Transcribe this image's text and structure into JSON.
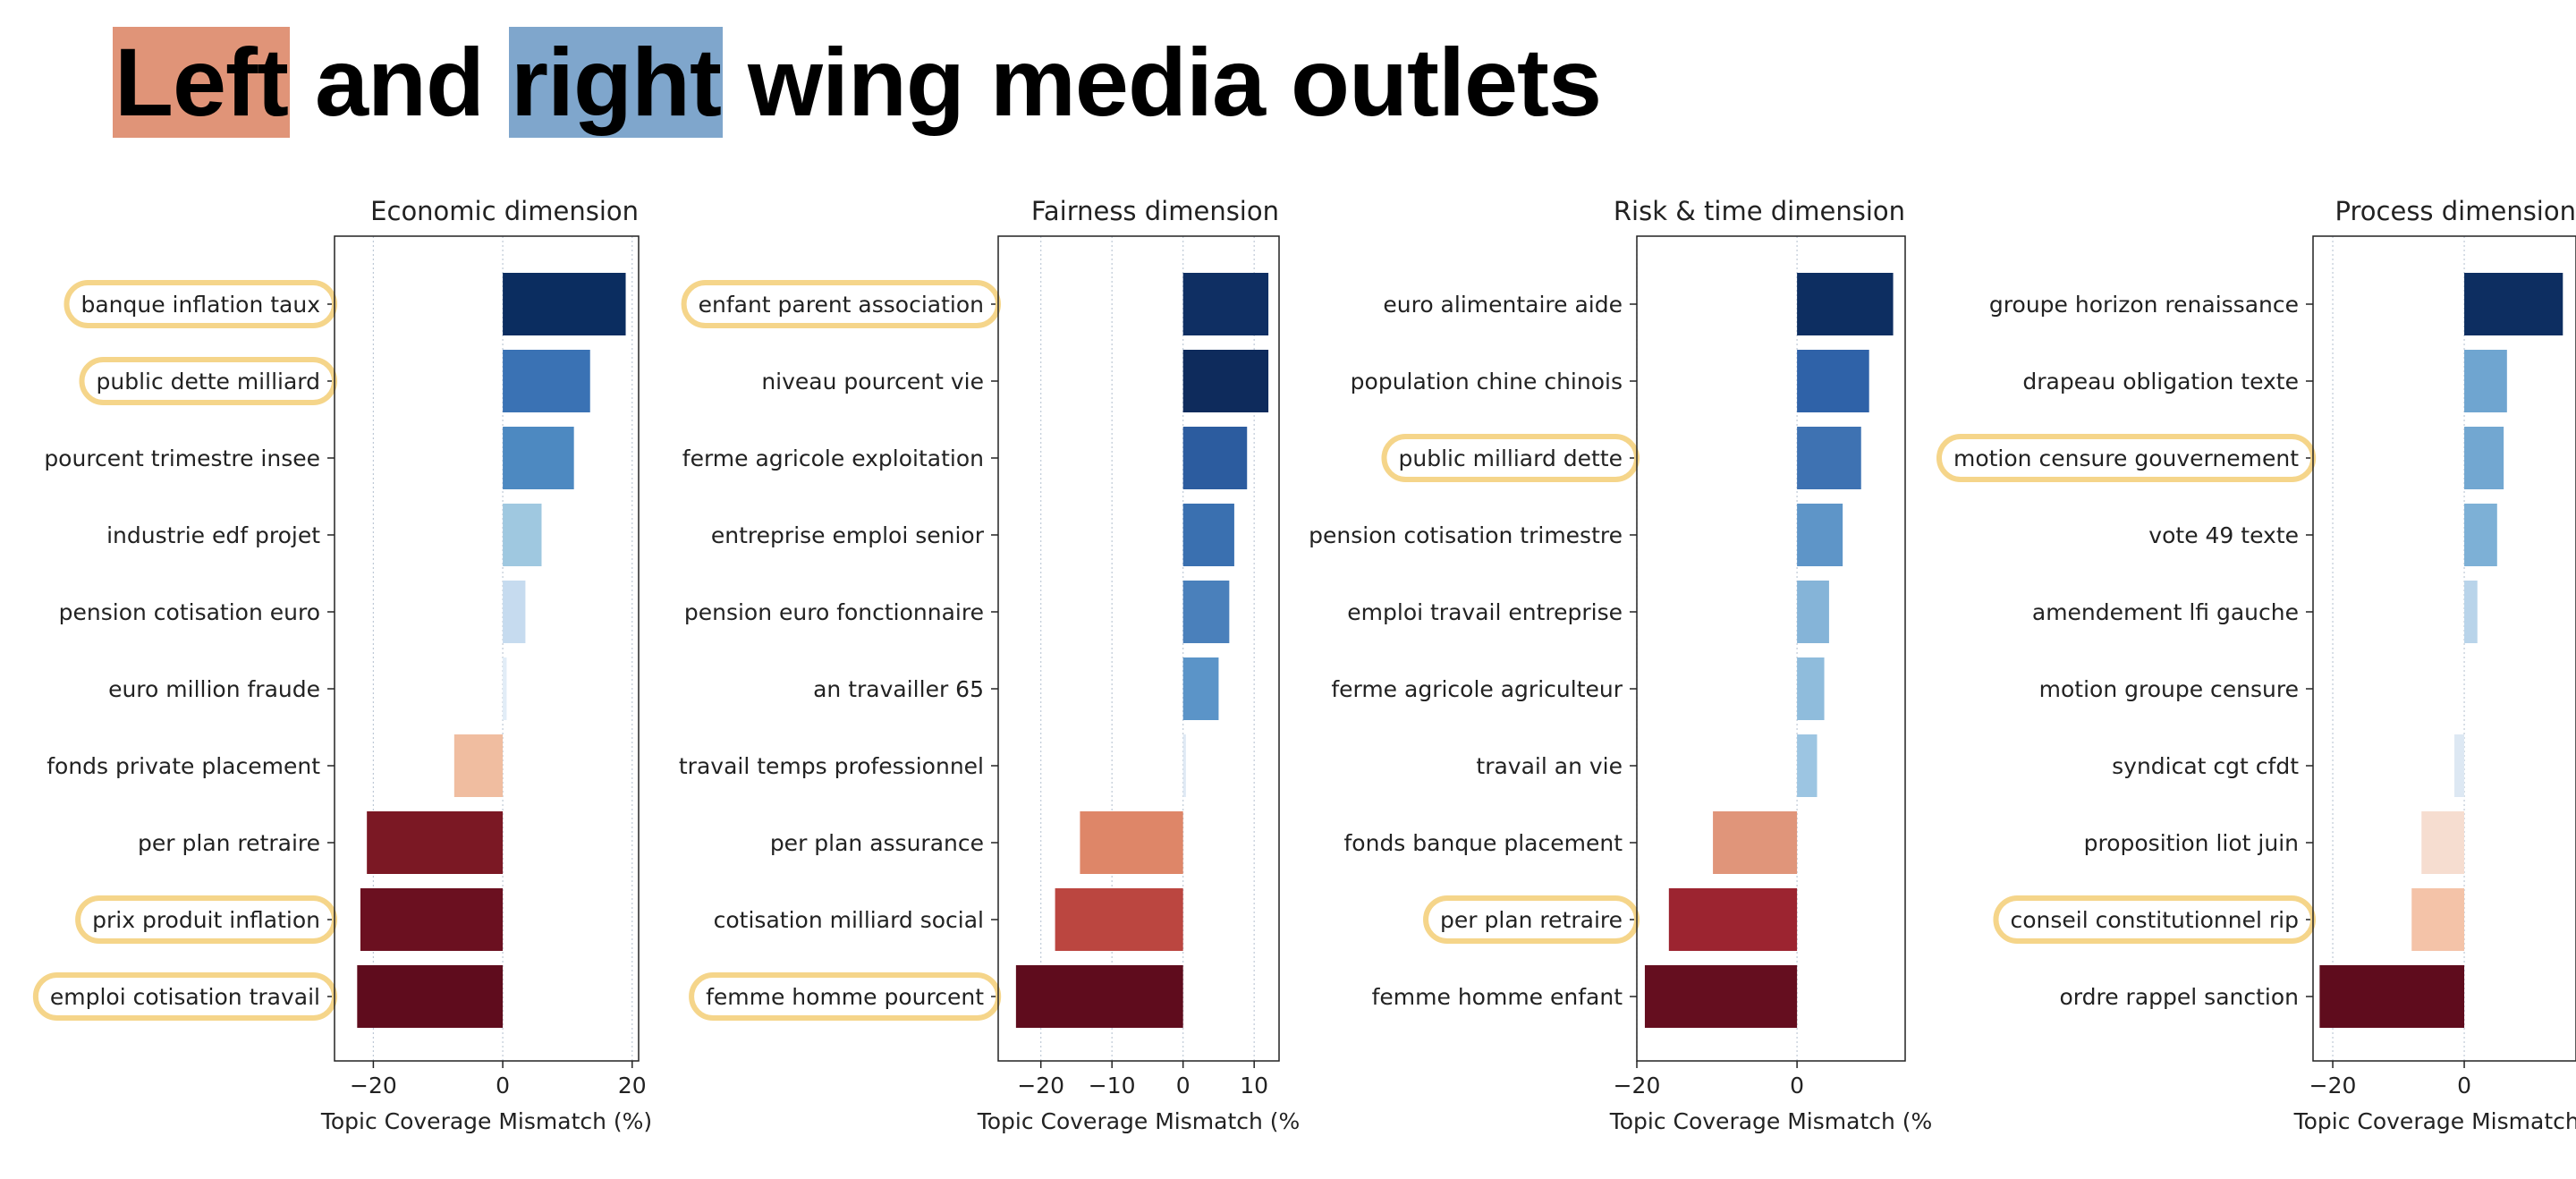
{
  "title": {
    "left_word": "Left",
    "middle": "and",
    "right_word": "right",
    "rest": "wing media outlets",
    "left_color": "#e09478",
    "right_color": "#7fa6cc"
  },
  "highlight_color": "#f5d58a",
  "chart_data": [
    {
      "type": "bar",
      "orientation": "horizontal",
      "title": "Economic dimension",
      "xlabel": "Topic Coverage Mismatch (%)",
      "xlim": [
        -26,
        21
      ],
      "xticks": [
        -20,
        0,
        20
      ],
      "xtick_labels": [
        "−20",
        "0",
        "20"
      ],
      "categories": [
        "banque inflation taux",
        "public dette milliard",
        "pourcent trimestre insee",
        "industrie edf projet",
        "pension cotisation euro",
        "euro million fraude",
        "fonds private placement",
        "per plan retraire",
        "prix produit inflation",
        "emploi cotisation travail"
      ],
      "values": [
        19,
        13.5,
        11,
        6,
        3.5,
        0.6,
        -7.5,
        -21,
        -22,
        -22.5
      ],
      "colors": [
        "#0b2d60",
        "#3a72b4",
        "#4d89c1",
        "#9fc8e0",
        "#c6dbef",
        "#e2edf7",
        "#f0bda0",
        "#7b1824",
        "#6b1020",
        "#5f0c1d"
      ],
      "highlighted": [
        "banque inflation taux",
        "public dette milliard",
        "prix produit inflation",
        "emploi cotisation travail"
      ]
    },
    {
      "type": "bar",
      "orientation": "horizontal",
      "title": "Fairness dimension",
      "xlabel": "Topic Coverage Mismatch (%",
      "xlim": [
        -26,
        13.5
      ],
      "xticks": [
        -20,
        -10,
        0,
        10
      ],
      "xtick_labels": [
        "−20",
        "−10",
        "0",
        "10"
      ],
      "categories": [
        "enfant parent association",
        "niveau pourcent vie",
        "ferme agricole exploitation",
        "entreprise emploi senior",
        "pension euro fonctionnaire",
        "an travailler 65",
        "travail temps professionnel",
        "per plan assurance",
        "cotisation milliard social",
        "femme homme pourcent"
      ],
      "values": [
        12,
        12,
        9,
        7.2,
        6.5,
        5,
        0.4,
        -14.5,
        -18,
        -23.5
      ],
      "colors": [
        "#0f2f63",
        "#0e2b5c",
        "#2c5c9f",
        "#3a70b0",
        "#4a80bb",
        "#5b94c8",
        "#dfe9f4",
        "#de8668",
        "#bb4640",
        "#5f0c1d"
      ],
      "highlighted": [
        "enfant parent association",
        "femme homme pourcent"
      ]
    },
    {
      "type": "bar",
      "orientation": "horizontal",
      "title": "Risk & time dimension",
      "xlabel": "Topic Coverage Mismatch (%",
      "xlim": [
        -20,
        13.5
      ],
      "xticks": [
        -20,
        0
      ],
      "xtick_labels": [
        "−20",
        "0"
      ],
      "categories": [
        "euro alimentaire aide",
        "population chine chinois",
        "public milliard dette",
        "pension cotisation trimestre",
        "emploi travail entreprise",
        "ferme agricole agriculteur",
        "travail an vie",
        "fonds banque placement",
        "per plan retraire",
        "femme homme enfant"
      ],
      "values": [
        12,
        9,
        8,
        5.7,
        4,
        3.4,
        2.5,
        -10.5,
        -16,
        -19
      ],
      "colors": [
        "#0d2e61",
        "#2f62a8",
        "#3e72b2",
        "#5e95c8",
        "#85b4d8",
        "#8fbcdc",
        "#9cc5e2",
        "#e0957a",
        "#9c2430",
        "#650e1f"
      ],
      "highlighted": [
        "public milliard dette",
        "per plan retraire"
      ]
    },
    {
      "type": "bar",
      "orientation": "horizontal",
      "title": "Process dimension",
      "xlabel": "Topic Coverage Mismatch (",
      "xlim": [
        -23,
        17
      ],
      "xticks": [
        -20,
        0
      ],
      "xtick_labels": [
        "−20",
        "0"
      ],
      "categories": [
        "groupe horizon renaissance",
        "drapeau obligation texte",
        "motion censure gouvernement",
        "vote 49 texte",
        "amendement lfi gauche",
        "motion groupe censure",
        "syndicat cgt cfdt",
        "proposition liot juin",
        "conseil constitutionnel rip",
        "ordre rappel sanction"
      ],
      "values": [
        15,
        6.5,
        6,
        5,
        2,
        0,
        -1.5,
        -6.5,
        -8,
        -22
      ],
      "colors": [
        "#0d2e61",
        "#6fa5d0",
        "#72a7d1",
        "#7db0d6",
        "#b9d4ea",
        "#ffffff",
        "#dde8f3",
        "#f6ddd0",
        "#f4c3a8",
        "#5f0c1d"
      ],
      "highlighted": [
        "motion censure gouvernement",
        "conseil constitutionnel rip"
      ]
    }
  ]
}
